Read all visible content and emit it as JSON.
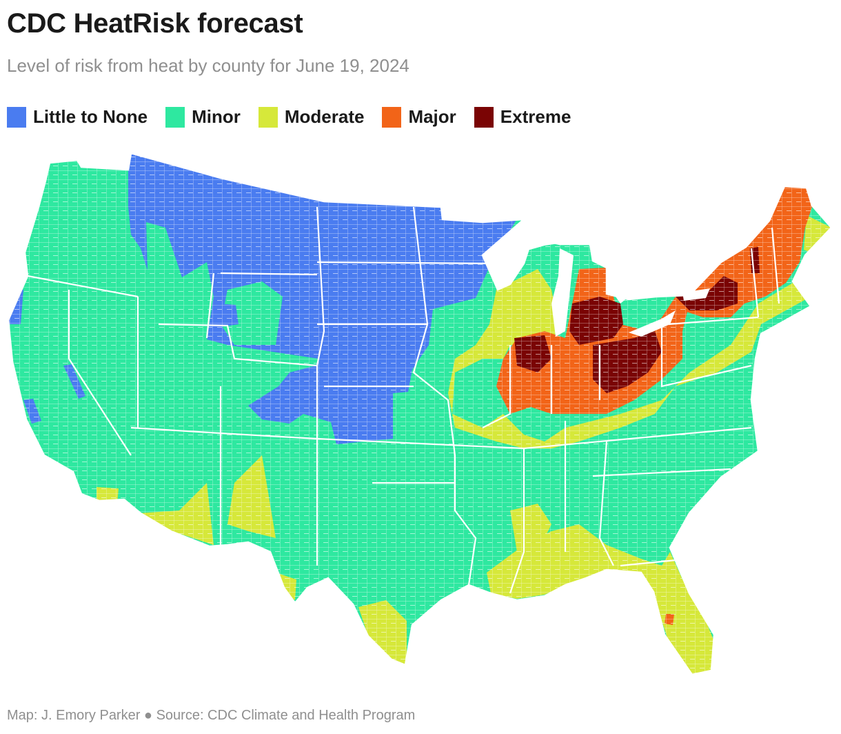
{
  "title": "CDC HeatRisk forecast",
  "subtitle": "Level of risk from heat by county for June 19, 2024",
  "legend": [
    {
      "label": "Little to None",
      "color": "#4a7cf0"
    },
    {
      "label": "Minor",
      "color": "#2ee8a0"
    },
    {
      "label": "Moderate",
      "color": "#d6e83a"
    },
    {
      "label": "Major",
      "color": "#f26418"
    },
    {
      "label": "Extreme",
      "color": "#7a0404"
    }
  ],
  "credit": "Map: J. Emory Parker ● Source: CDC Climate and Health Program",
  "colors": {
    "little": "#4a7cf0",
    "minor": "#2ee8a0",
    "moderate": "#d6e83a",
    "major": "#f26418",
    "extreme": "#7a0404",
    "border": "#ffffff"
  }
}
